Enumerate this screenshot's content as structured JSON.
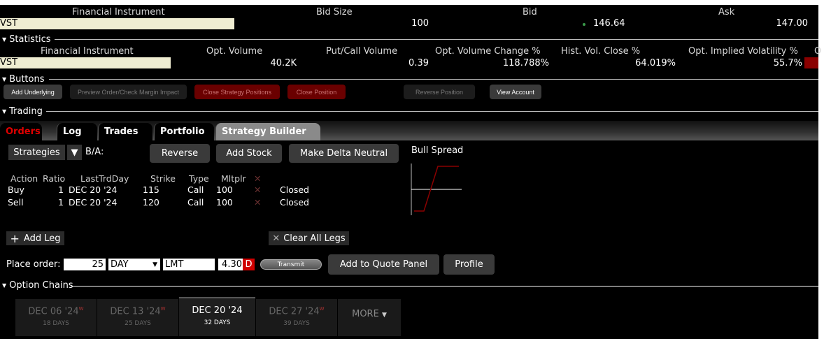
{
  "quote": {
    "headers": [
      "Financial Instrument",
      "Bid Size",
      "Bid",
      "Ask"
    ],
    "symbol": "VST",
    "bid_size": "100",
    "bid": "146.64",
    "ask": "147.00"
  },
  "statistics": {
    "title": "Statistics",
    "headers": [
      "Financial Instrument",
      "Opt. Volume",
      "Put/Call Volume",
      "Opt. Volume Change %",
      "Hist. Vol. Close %",
      "Opt. Implied Volatility %",
      "O"
    ],
    "symbol": "VST",
    "opt_volume": "40.2K",
    "put_call": "0.39",
    "opt_vol_change": "118.788%",
    "hist_vol": "64.019%",
    "implied_vol": "55.7%"
  },
  "buttons": {
    "title": "Buttons",
    "items": [
      "Add Underlying",
      "Preview Order/Check Margin Impact",
      "Close Strategy Positions",
      "Close Position",
      "Reverse Position",
      "View Account"
    ]
  },
  "trading": {
    "title": "Trading",
    "tabs": [
      "Orders",
      "Log",
      "Trades",
      "Portfolio",
      "Strategy Builder"
    ],
    "strategies": "Strategies",
    "ba": "B/A:",
    "reverse": "Reverse",
    "add_stock": "Add Stock",
    "delta_neutral": "Make Delta Neutral",
    "graph_title": "Bull Spread",
    "columns": [
      "Action",
      "Ratio",
      "LastTrdDay",
      "Strike",
      "Type",
      "Mltplr"
    ],
    "legs": [
      {
        "action": "Buy",
        "ratio": "1",
        "day": "DEC 20 '24",
        "strike": "115",
        "type": "Call",
        "mult": "100",
        "status": "Closed"
      },
      {
        "action": "Sell",
        "ratio": "1",
        "day": "DEC 20 '24",
        "strike": "120",
        "type": "Call",
        "mult": "100",
        "status": "Closed"
      }
    ],
    "add_leg": "Add Leg",
    "clear_legs": "Clear All Legs",
    "place_order": "Place order:",
    "qty": "25",
    "tif": "DAY",
    "order_type": "LMT",
    "price": "4.30",
    "price_flag": "D",
    "transmit": "Transmit",
    "add_quote": "Add to Quote Panel",
    "profile": "Profile"
  },
  "option_chains": {
    "title": "Option Chains",
    "expiries": [
      {
        "date": "DEC 06 '24",
        "weekly": "W",
        "days": "18 DAYS"
      },
      {
        "date": "DEC 13 '24",
        "weekly": "W",
        "days": "25 DAYS"
      },
      {
        "date": "DEC 20 '24",
        "weekly": "",
        "days": "32 DAYS"
      },
      {
        "date": "DEC 27 '24",
        "weekly": "W",
        "days": "39 DAYS"
      }
    ],
    "more": "MORE"
  },
  "colors": {
    "accent_red": "#cc0000",
    "button_red": "#6a0000",
    "cream": "#efedd2",
    "bid_dot": "#3a9a4a"
  }
}
